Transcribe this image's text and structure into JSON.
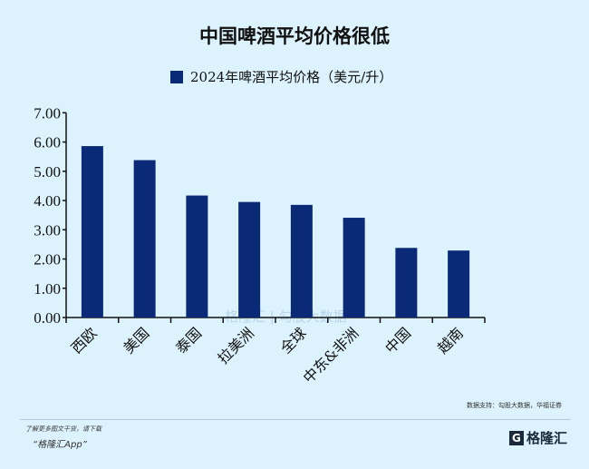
{
  "title": "中国啤酒平均价格很低",
  "footer": {
    "source": "数据支持：勾股大数据，华福证券",
    "promo_line1": "了解更多图文干货，请下载",
    "promo_line2": "“格隆汇App”",
    "logo_text": "格隆汇",
    "watermark": "格隆汇 | 勾股大数据"
  },
  "colors": {
    "bar": "#0a2a78",
    "background": "#dcf2fc"
  },
  "chart_data": {
    "type": "bar",
    "title": "中国啤酒平均价格很低",
    "categories": [
      "西欧",
      "美国",
      "泰国",
      "拉美洲",
      "全球",
      "中东&非洲",
      "中国",
      "越南"
    ],
    "series": [
      {
        "name": "2024年啤酒平均价格（美元/升）",
        "values": [
          5.86,
          5.38,
          4.17,
          3.95,
          3.85,
          3.41,
          2.38,
          2.29
        ]
      }
    ],
    "ylim": [
      0,
      7
    ],
    "yticks": [
      "0.00",
      "1.00",
      "2.00",
      "3.00",
      "4.00",
      "5.00",
      "6.00",
      "7.00"
    ],
    "legend": "top",
    "grid": false,
    "xlabel": "",
    "ylabel": ""
  }
}
